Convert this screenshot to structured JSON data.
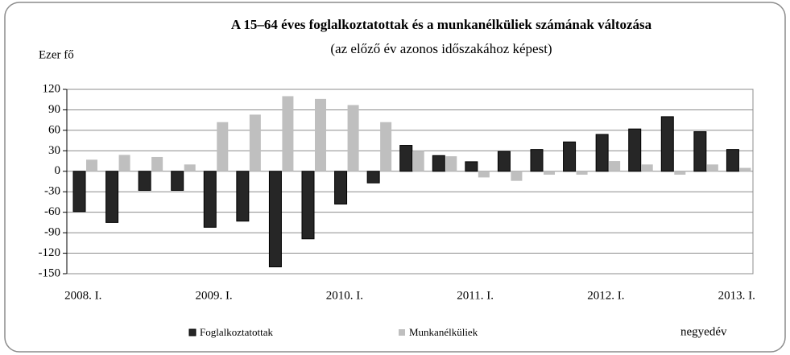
{
  "chart_data": {
    "type": "bar",
    "title": "A 15–64 éves foglalkoztatottak és a munkanélküliek számának változása",
    "subtitle": "(az előző év azonos időszakához képest)",
    "y_label": "Ezer fő",
    "x_label": "negyedév",
    "categories": [
      "2008. I.",
      null,
      null,
      null,
      "2009. I.",
      null,
      null,
      null,
      "2010. I.",
      null,
      null,
      null,
      "2011. I.",
      null,
      null,
      null,
      "2012. I.",
      null,
      null,
      null,
      "2013. I."
    ],
    "series": [
      {
        "name": "Foglalkoztatottak",
        "color": "#262626",
        "values": [
          -59,
          -75,
          -28,
          -28,
          -82,
          -73,
          -140,
          -99,
          -48,
          -17,
          38,
          23,
          14,
          29,
          32,
          43,
          54,
          62,
          80,
          58,
          32
        ]
      },
      {
        "name": "Munkanélküliek",
        "color": "#bfbfbf",
        "values": [
          17,
          24,
          21,
          10,
          72,
          83,
          110,
          106,
          97,
          72,
          30,
          22,
          -9,
          -14,
          -5,
          -5,
          15,
          10,
          -5,
          10,
          5
        ]
      }
    ],
    "ylim": [
      -150,
      120
    ],
    "yticks": [
      -150,
      -120,
      -90,
      -60,
      -30,
      0,
      30,
      60,
      90,
      120
    ],
    "grid": true
  }
}
